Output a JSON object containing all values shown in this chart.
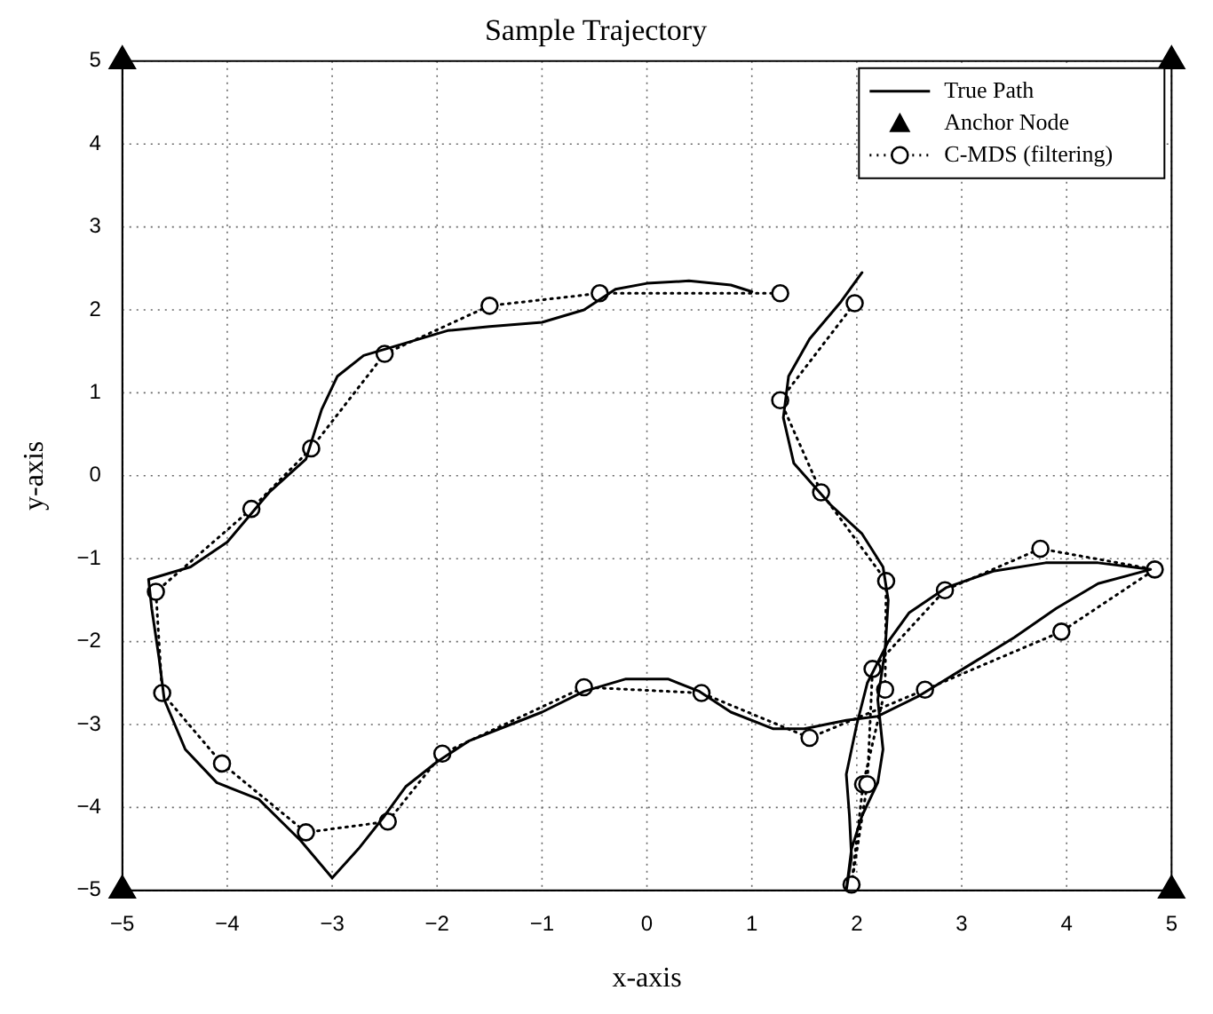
{
  "chart_data": {
    "type": "line",
    "title": "Sample Trajectory",
    "xlabel": "x-axis",
    "ylabel": "y-axis",
    "xlim": [
      -5,
      5
    ],
    "ylim": [
      -5,
      5
    ],
    "xticks": [
      -5,
      -4,
      -3,
      -2,
      -1,
      0,
      1,
      2,
      3,
      4,
      5
    ],
    "yticks": [
      -5,
      -4,
      -3,
      -2,
      -1,
      0,
      1,
      2,
      3,
      4,
      5
    ],
    "grid": true,
    "legend": "top right",
    "series": [
      {
        "name": "True Path",
        "type": "line",
        "color": "#000000",
        "line_style": "solid",
        "marker": "none",
        "x": [
          2.05,
          1.85,
          1.55,
          1.35,
          1.3,
          1.4,
          1.75,
          2.05,
          2.25,
          2.3,
          2.27,
          2.2,
          2.25,
          2.2,
          2.05,
          1.95,
          1.9,
          1.95,
          1.93,
          1.9,
          2.0,
          2.1,
          2.3,
          2.5,
          2.85,
          3.3,
          3.8,
          4.3,
          4.8,
          4.3,
          3.9,
          3.5,
          3.05,
          2.6,
          2.2,
          1.9,
          1.5,
          1.2,
          0.8,
          0.5,
          0.2,
          -0.2,
          -0.6,
          -1.0,
          -1.3,
          -1.7,
          -2.0,
          -2.3,
          -2.5,
          -2.75,
          -3.0,
          -3.3,
          -3.7,
          -4.1,
          -4.4,
          -4.6,
          -4.65,
          -4.72,
          -4.75,
          -4.35,
          -4.0,
          -3.6,
          -3.25,
          -3.1,
          -2.95,
          -2.7,
          -2.3,
          -1.9,
          -1.5,
          -1.0,
          -0.6,
          -0.3,
          0.0,
          0.4,
          0.8,
          1.0
        ],
        "values": [
          2.45,
          2.1,
          1.65,
          1.2,
          0.7,
          0.15,
          -0.35,
          -0.7,
          -1.1,
          -1.5,
          -2.1,
          -2.7,
          -3.3,
          -3.7,
          -4.1,
          -4.5,
          -5.0,
          -4.6,
          -4.1,
          -3.6,
          -3.0,
          -2.5,
          -2.0,
          -1.65,
          -1.35,
          -1.15,
          -1.05,
          -1.05,
          -1.13,
          -1.3,
          -1.6,
          -1.95,
          -2.3,
          -2.65,
          -2.9,
          -2.95,
          -3.05,
          -3.05,
          -2.85,
          -2.6,
          -2.45,
          -2.45,
          -2.6,
          -2.85,
          -3.0,
          -3.2,
          -3.45,
          -3.75,
          -4.1,
          -4.5,
          -4.85,
          -4.4,
          -3.9,
          -3.7,
          -3.3,
          -2.7,
          -2.2,
          -1.6,
          -1.25,
          -1.1,
          -0.8,
          -0.2,
          0.2,
          0.8,
          1.2,
          1.45,
          1.6,
          1.75,
          1.8,
          1.85,
          2.0,
          2.25,
          2.32,
          2.35,
          2.3,
          2.22
        ]
      },
      {
        "name": "Anchor Node",
        "type": "scatter",
        "color": "#000000",
        "marker": "triangle",
        "x": [
          -5,
          5,
          -5,
          5
        ],
        "values": [
          5,
          5,
          -5,
          -5
        ]
      },
      {
        "name": "C-MDS (filtering)",
        "type": "line",
        "color": "#000000",
        "line_style": "dotted",
        "marker": "circle",
        "x": [
          1.98,
          1.27,
          1.66,
          2.28,
          2.27,
          2.06,
          1.95,
          2.1,
          2.15,
          2.84,
          3.75,
          4.84,
          3.95,
          2.65,
          1.55,
          0.52,
          -0.6,
          -1.95,
          -2.47,
          -3.25,
          -4.05,
          -4.62,
          -4.68,
          -3.77,
          -3.2,
          -2.5,
          -1.5,
          -0.45,
          1.27
        ],
        "values": [
          2.08,
          0.91,
          -0.2,
          -1.27,
          -2.58,
          -3.72,
          -4.93,
          -3.72,
          -2.33,
          -1.38,
          -0.88,
          -1.13,
          -1.88,
          -2.58,
          -3.16,
          -2.62,
          -2.55,
          -3.35,
          -4.17,
          -4.3,
          -3.47,
          -2.62,
          -1.4,
          -0.4,
          0.33,
          1.47,
          2.05,
          2.2,
          2.2
        ]
      }
    ]
  }
}
